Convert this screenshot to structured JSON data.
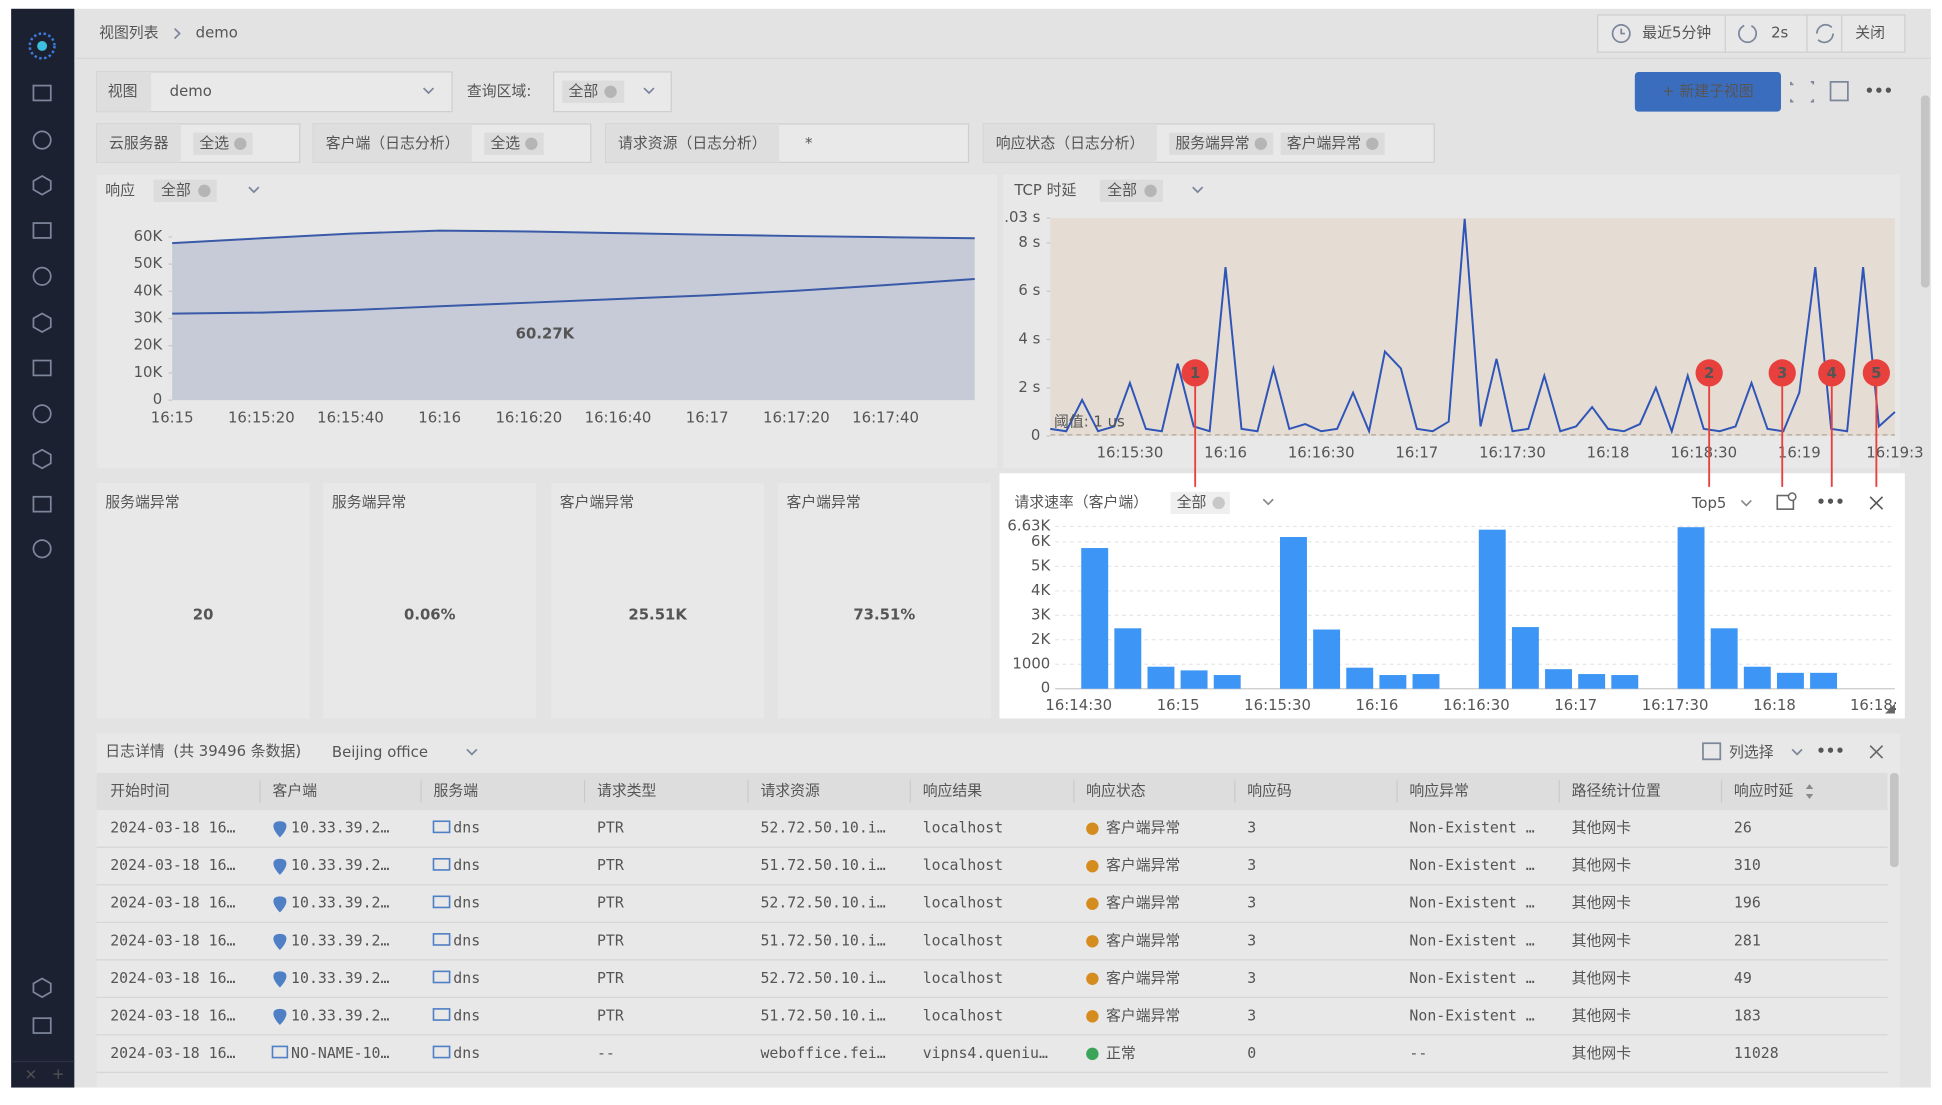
{
  "breadcrumb": [
    "视图列表",
    "demo"
  ],
  "toolbar": {
    "time_range": "最近5分钟",
    "refresh": "2s",
    "close": "关闭"
  },
  "view": {
    "label": "视图",
    "value": "demo",
    "region_label": "查询区域:",
    "region_tag": "全部",
    "new_button": "+ 新建子视图"
  },
  "filters": [
    {
      "label": "云服务器",
      "tags": [
        "全选"
      ]
    },
    {
      "label": "客户端（日志分析）",
      "tags": [
        "全选"
      ]
    },
    {
      "label": "请求资源（日志分析）",
      "value": "*"
    },
    {
      "label": "响应状态（日志分析）",
      "tags": [
        "服务端异常",
        "客户端异常"
      ]
    }
  ],
  "chart_data": [
    {
      "type": "line",
      "title": "响应",
      "tag": "全部",
      "annotation": "60.27K",
      "categories": [
        "16:15",
        "16:15:20",
        "16:15:40",
        "16:16",
        "16:16:20",
        "16:16:40",
        "16:17",
        "16:17:20",
        "16:17:40",
        null
      ],
      "series": [
        {
          "color": "#3a5aa8",
          "values": [
            57700,
            59500,
            61200,
            62300,
            62000,
            61400,
            60800,
            60300,
            59900,
            59500
          ]
        },
        {
          "color": "#3a5aa8",
          "values": [
            31800,
            32200,
            33100,
            34500,
            35800,
            37200,
            38500,
            40200,
            42300,
            44500
          ]
        }
      ],
      "ylim": [
        0,
        66000
      ],
      "yticks": [
        0,
        {
          "value": 10000,
          "label": "10K"
        },
        {
          "value": 20000,
          "label": "20K"
        },
        {
          "value": 30000,
          "label": "30K"
        },
        {
          "value": 40000,
          "label": "40K"
        },
        {
          "value": 50000,
          "label": "50K"
        },
        {
          "value": 60000,
          "label": "60K"
        }
      ]
    },
    {
      "type": "line",
      "title": "TCP 时延",
      "tag": "全部",
      "annotation": "阈值: 1 us",
      "categories": [
        null,
        null,
        null,
        null,
        null,
        "16:15:30",
        null,
        null,
        null,
        null,
        null,
        "16:16",
        null,
        null,
        null,
        null,
        null,
        "16:16:30",
        null,
        null,
        null,
        null,
        null,
        "16:17",
        null,
        null,
        null,
        null,
        null,
        "16:17:30",
        null,
        null,
        null,
        null,
        null,
        "16:18",
        null,
        null,
        null,
        null,
        null,
        "16:18:30",
        null,
        null,
        null,
        null,
        null,
        "16:19",
        null,
        null,
        null,
        null,
        null,
        "16:19:3"
      ],
      "series": [
        {
          "color": "#2f55b8",
          "values": [
            0.3,
            0.2,
            1.5,
            0.2,
            0.4,
            2.2,
            0.3,
            0.2,
            3.0,
            0.4,
            0.2,
            7.0,
            0.3,
            0.2,
            2.8,
            0.3,
            0.5,
            0.2,
            0.3,
            1.8,
            0.2,
            3.5,
            2.8,
            0.3,
            0.2,
            0.6,
            9.0,
            0.4,
            3.2,
            0.2,
            0.3,
            2.5,
            0.2,
            0.4,
            1.2,
            0.3,
            0.2,
            0.5,
            2.0,
            0.2,
            2.5,
            0.3,
            0.2,
            0.4,
            2.2,
            0.3,
            0.2,
            1.8,
            7.0,
            0.3,
            0.2,
            7.0,
            0.4,
            1.0
          ]
        }
      ],
      "ylim": [
        0,
        9.03
      ],
      "yticks": [
        0,
        {
          "value": 2,
          "label": "2 s"
        },
        {
          "value": 4,
          "label": "4 s"
        },
        {
          "value": 6,
          "label": "6 s"
        },
        {
          "value": 8,
          "label": "8 s"
        },
        {
          "value": 9.03,
          "label": ".03 s"
        }
      ]
    },
    {
      "type": "bar",
      "title": "请求速率（客户端）",
      "tag": "全部",
      "top": "Top5",
      "categories": [
        "16:14:30",
        null,
        null,
        "16:15",
        null,
        null,
        "16:15:30",
        null,
        null,
        "16:16",
        null,
        null,
        "16:16:30",
        null,
        null,
        "16:17",
        null,
        null,
        "16:17:30",
        null,
        null,
        "16:18",
        null,
        null,
        "16:18:"
      ],
      "values": [
        5750,
        2470,
        900,
        750,
        560,
        null,
        6200,
        2420,
        860,
        560,
        600,
        null,
        6500,
        2520,
        800,
        600,
        560,
        null,
        6600,
        2470,
        900,
        650,
        650,
        null,
        null
      ],
      "color": "#3d96f5",
      "ylim": [
        0,
        6630
      ],
      "yticks": [
        0,
        1000,
        {
          "value": 2000,
          "label": "2K"
        },
        {
          "value": 3000,
          "label": "3K"
        },
        {
          "value": 4000,
          "label": "4K"
        },
        {
          "value": 5000,
          "label": "5K"
        },
        {
          "value": 6000,
          "label": "6K"
        },
        {
          "value": 6630,
          "label": "6.63K"
        }
      ],
      "grid": true
    }
  ],
  "cards": [
    {
      "label": "服务端异常",
      "value": "20"
    },
    {
      "label": "服务端异常",
      "value": "0.06%"
    },
    {
      "label": "客户端异常",
      "value": "25.51K"
    },
    {
      "label": "客户端异常",
      "value": "73.51%"
    }
  ],
  "table": {
    "title": "日志详情",
    "count": "(共 39496 条数据)",
    "group": "Beijing office",
    "column_select": "列选择",
    "columns": [
      "开始时间",
      "客户端",
      "服务端",
      "请求类型",
      "请求资源",
      "响应结果",
      "响应状态",
      "响应码",
      "响应异常",
      "路径统计位置",
      "响应时延"
    ],
    "rows": [
      [
        "2024-03-18 16…",
        "10.33.39.2…",
        "dns",
        "PTR",
        "52.72.50.10.i…",
        "localhost",
        "客户端异常",
        "3",
        "Non-Existent …",
        "其他网卡",
        "26"
      ],
      [
        "2024-03-18 16…",
        "10.33.39.2…",
        "dns",
        "PTR",
        "51.72.50.10.i…",
        "localhost",
        "客户端异常",
        "3",
        "Non-Existent …",
        "其他网卡",
        "310"
      ],
      [
        "2024-03-18 16…",
        "10.33.39.2…",
        "dns",
        "PTR",
        "52.72.50.10.i…",
        "localhost",
        "客户端异常",
        "3",
        "Non-Existent …",
        "其他网卡",
        "196"
      ],
      [
        "2024-03-18 16…",
        "10.33.39.2…",
        "dns",
        "PTR",
        "51.72.50.10.i…",
        "localhost",
        "客户端异常",
        "3",
        "Non-Existent …",
        "其他网卡",
        "281"
      ],
      [
        "2024-03-18 16…",
        "10.33.39.2…",
        "dns",
        "PTR",
        "52.72.50.10.i…",
        "localhost",
        "客户端异常",
        "3",
        "Non-Existent …",
        "其他网卡",
        "49"
      ],
      [
        "2024-03-18 16…",
        "10.33.39.2…",
        "dns",
        "PTR",
        "51.72.50.10.i…",
        "localhost",
        "客户端异常",
        "3",
        "Non-Existent …",
        "其他网卡",
        "183"
      ],
      [
        "2024-03-18 16…",
        "NO-NAME-10…",
        "dns",
        "--",
        "weboffice.fei…",
        "vipns4.queniu…",
        "正常",
        "0",
        "--",
        "其他网卡",
        "11028"
      ]
    ]
  },
  "callouts": [
    "1",
    "2",
    "3",
    "4",
    "5"
  ]
}
